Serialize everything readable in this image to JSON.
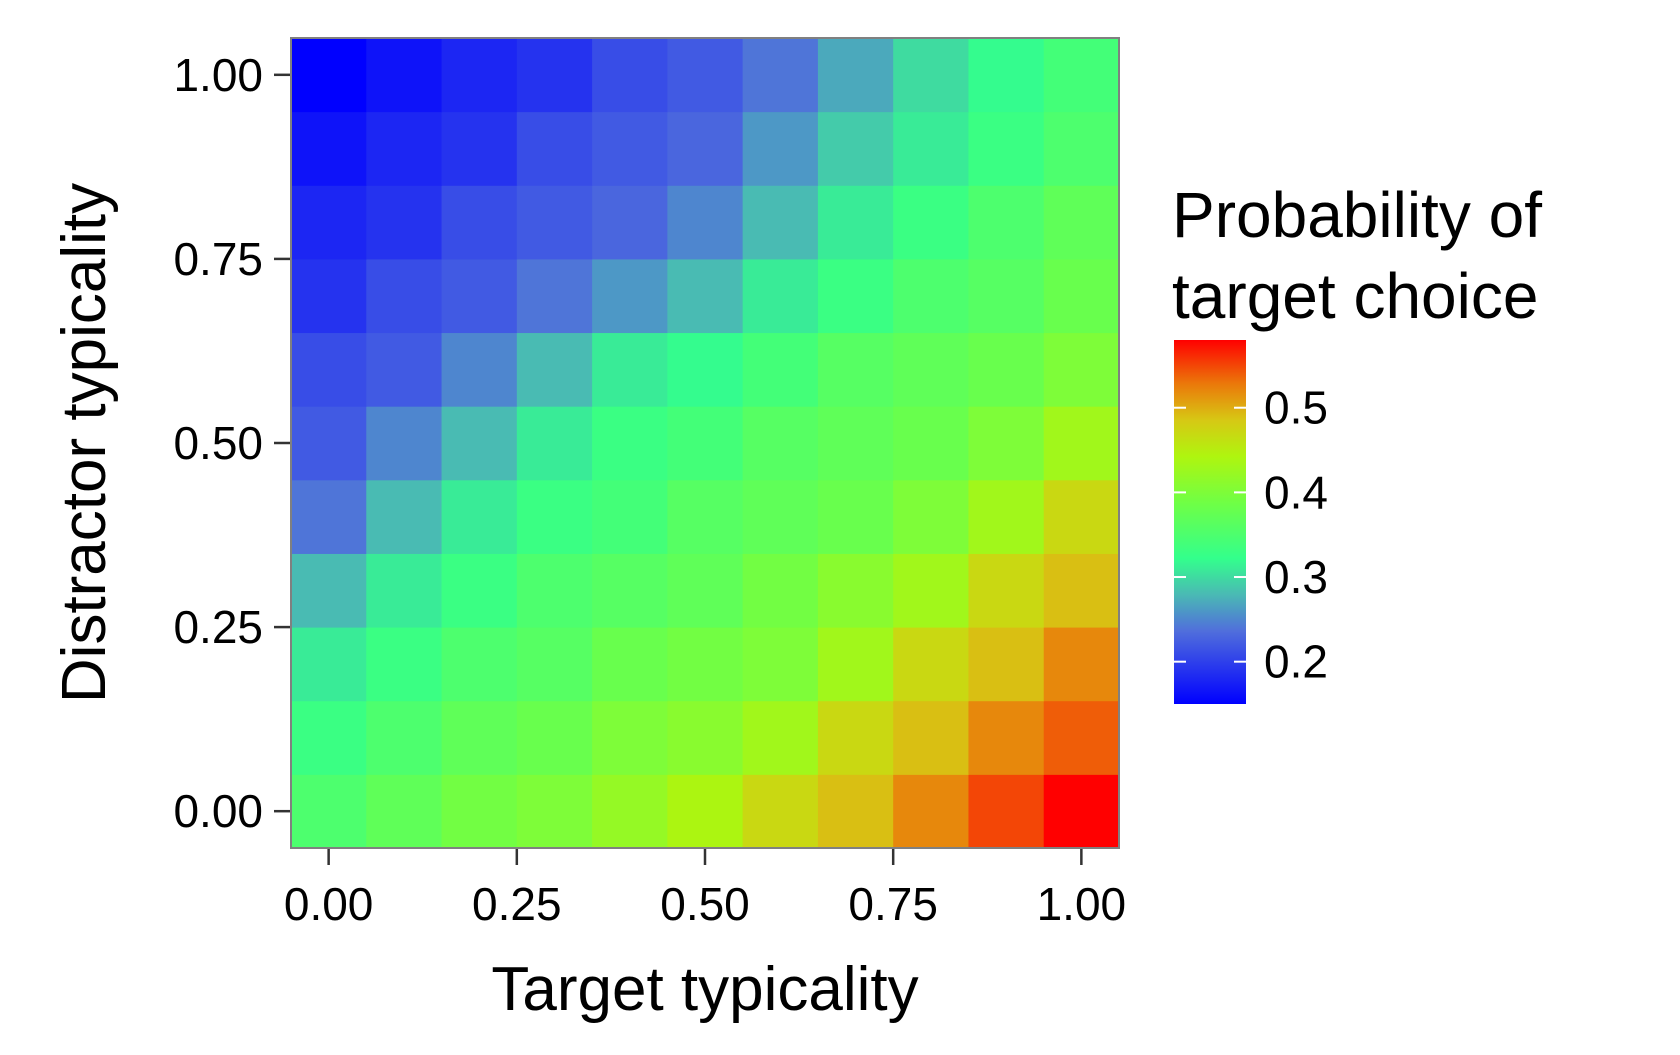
{
  "chart_data": {
    "type": "heatmap",
    "xlabel": "Target typicality",
    "ylabel": "Distractor typicality",
    "xlim": [
      -0.05,
      1.05
    ],
    "ylim": [
      -0.05,
      1.05
    ],
    "x": [
      0.0,
      0.1,
      0.2,
      0.3,
      0.4,
      0.5,
      0.6,
      0.7,
      0.8,
      0.9,
      1.0
    ],
    "y": [
      0.0,
      0.1,
      0.2,
      0.3,
      0.4,
      0.5,
      0.6,
      0.7,
      0.8,
      0.9,
      1.0
    ],
    "x_ticks": [
      0.0,
      0.25,
      0.5,
      0.75,
      1.0
    ],
    "x_tick_labels": [
      "0.00",
      "0.25",
      "0.50",
      "0.75",
      "1.00"
    ],
    "y_ticks": [
      0.0,
      0.25,
      0.5,
      0.75,
      1.0
    ],
    "y_tick_labels": [
      "0.00",
      "0.25",
      "0.50",
      "0.75",
      "1.00"
    ],
    "values_note": "rows ordered by y (0.0 upward), columns by x",
    "values": [
      [
        0.35,
        0.37,
        0.39,
        0.4,
        0.42,
        0.44,
        0.47,
        0.49,
        0.52,
        0.55,
        0.58
      ],
      [
        0.33,
        0.35,
        0.37,
        0.38,
        0.4,
        0.41,
        0.43,
        0.47,
        0.49,
        0.52,
        0.54
      ],
      [
        0.31,
        0.33,
        0.35,
        0.36,
        0.38,
        0.39,
        0.4,
        0.43,
        0.47,
        0.49,
        0.52
      ],
      [
        0.28,
        0.31,
        0.33,
        0.35,
        0.36,
        0.37,
        0.39,
        0.41,
        0.43,
        0.47,
        0.49
      ],
      [
        0.24,
        0.28,
        0.31,
        0.33,
        0.34,
        0.36,
        0.37,
        0.38,
        0.4,
        0.43,
        0.47
      ],
      [
        0.22,
        0.25,
        0.28,
        0.31,
        0.33,
        0.34,
        0.36,
        0.37,
        0.38,
        0.4,
        0.43
      ],
      [
        0.21,
        0.22,
        0.25,
        0.28,
        0.31,
        0.32,
        0.34,
        0.36,
        0.37,
        0.38,
        0.4
      ],
      [
        0.19,
        0.21,
        0.22,
        0.24,
        0.26,
        0.28,
        0.31,
        0.33,
        0.35,
        0.36,
        0.38
      ],
      [
        0.18,
        0.19,
        0.21,
        0.22,
        0.23,
        0.25,
        0.28,
        0.31,
        0.33,
        0.35,
        0.37
      ],
      [
        0.165,
        0.18,
        0.19,
        0.21,
        0.22,
        0.23,
        0.26,
        0.29,
        0.31,
        0.33,
        0.35
      ],
      [
        0.15,
        0.165,
        0.18,
        0.19,
        0.21,
        0.22,
        0.24,
        0.27,
        0.3,
        0.32,
        0.34
      ]
    ],
    "colorbar": {
      "title_lines": [
        "Probability of",
        "target choice"
      ],
      "min": 0.15,
      "max": 0.58,
      "ticks": [
        0.2,
        0.3,
        0.4,
        0.5
      ],
      "tick_labels": [
        "0.2",
        "0.3",
        "0.4",
        "0.5"
      ],
      "placement": "right"
    },
    "grid": false,
    "colors": {
      "scale_low": "#0000ff",
      "scale_mid": "#33ff88",
      "scale_high": "#ff0000",
      "panel_border": "#808080",
      "axis_tick": "#333333"
    }
  }
}
